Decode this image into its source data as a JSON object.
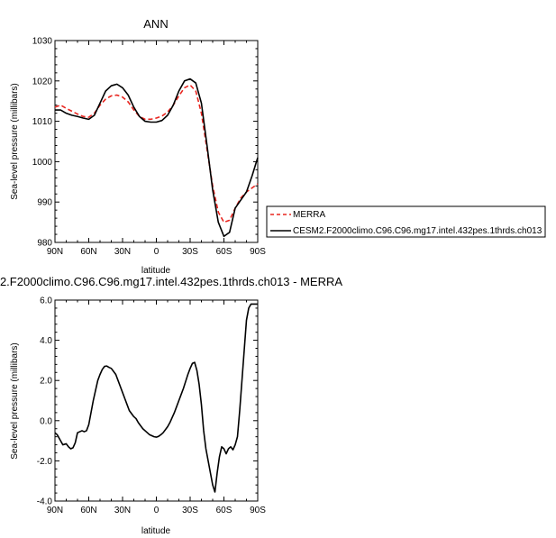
{
  "chart_data": [
    {
      "type": "line",
      "title": "ANN",
      "xlabel": "latitude",
      "ylabel": "Sea-level pressure (millibars)",
      "xlim": [
        -90,
        90
      ],
      "ylim": [
        980,
        1030
      ],
      "xticks": [
        -90,
        -60,
        -30,
        0,
        30,
        60,
        90
      ],
      "xtick_labels": [
        "90N",
        "60N",
        "30N",
        "0",
        "30S",
        "60S",
        "90S"
      ],
      "yticks": [
        980,
        990,
        1000,
        1010,
        1020,
        1030
      ],
      "ytick_labels": [
        "980",
        "990",
        "1000",
        "1010",
        "1020",
        "1030"
      ],
      "legend": "right",
      "grid": false,
      "series": [
        {
          "name": "MERRA",
          "color": "#e8251f",
          "dash": true,
          "x": [
            -90,
            -85,
            -80,
            -75,
            -70,
            -65,
            -60,
            -55,
            -50,
            -45,
            -40,
            -35,
            -30,
            -25,
            -20,
            -15,
            -10,
            -5,
            0,
            5,
            10,
            15,
            20,
            25,
            30,
            35,
            40,
            45,
            50,
            55,
            60,
            65,
            70,
            75,
            80,
            85,
            90
          ],
          "y": [
            1013.5,
            1014,
            1013.2,
            1012.5,
            1011.8,
            1011.2,
            1011,
            1012,
            1014,
            1015.5,
            1016.3,
            1016.5,
            1016,
            1014.8,
            1012.8,
            1011.2,
            1010.5,
            1010.5,
            1010.8,
            1011.3,
            1012.3,
            1014,
            1016.3,
            1018.3,
            1019,
            1017.5,
            1012,
            1003,
            994,
            987.5,
            985,
            985.5,
            988.5,
            991,
            992.5,
            993.5,
            994.5
          ]
        },
        {
          "name": "CESM2.F2000climo.C96.C96.mg17.intel.432pes.1thrds.ch013",
          "color": "#000000",
          "dash": false,
          "x": [
            -90,
            -85,
            -80,
            -75,
            -70,
            -65,
            -60,
            -55,
            -50,
            -45,
            -40,
            -35,
            -30,
            -25,
            -20,
            -15,
            -10,
            -5,
            0,
            5,
            10,
            15,
            20,
            25,
            30,
            35,
            40,
            45,
            50,
            55,
            60,
            65,
            70,
            75,
            80,
            85,
            90
          ],
          "y": [
            1012.8,
            1012.8,
            1012,
            1011.5,
            1011.2,
            1010.8,
            1010.5,
            1011.5,
            1014.5,
            1017.5,
            1018.8,
            1019.2,
            1018.3,
            1016.5,
            1013.5,
            1011.2,
            1010,
            1009.8,
            1009.8,
            1010.2,
            1011.5,
            1014,
            1017.5,
            1020,
            1020.5,
            1019.5,
            1014.5,
            1004,
            993,
            985,
            981.5,
            982.5,
            988.5,
            990.5,
            992.5,
            996.5,
            1001
          ]
        }
      ]
    },
    {
      "type": "line",
      "title": "2.F2000climo.C96.C96.mg17.intel.432pes.1thrds.ch013 - MERRA",
      "xlabel": "latitude",
      "ylabel": "Sea-level pressure (millibars)",
      "xlim": [
        -90,
        90
      ],
      "ylim": [
        -4,
        6
      ],
      "xticks": [
        -90,
        -60,
        -30,
        0,
        30,
        60,
        90
      ],
      "xtick_labels": [
        "90N",
        "60N",
        "30N",
        "0",
        "30S",
        "60S",
        "90S"
      ],
      "yticks": [
        -4,
        -2,
        0,
        2,
        4,
        6
      ],
      "ytick_labels": [
        "-4.0",
        "-2.0",
        "0.0",
        "2.0",
        "4.0",
        "6.0"
      ],
      "grid": false,
      "series": [
        {
          "color": "#000000",
          "x": [
            -90,
            -88,
            -85,
            -83,
            -80,
            -78,
            -76,
            -74,
            -72,
            -70,
            -68,
            -66,
            -64,
            -62,
            -60,
            -58,
            -56,
            -54,
            -52,
            -50,
            -48,
            -46,
            -44,
            -42,
            -40,
            -38,
            -36,
            -34,
            -32,
            -30,
            -28,
            -26,
            -24,
            -22,
            -20,
            -18,
            -16,
            -14,
            -12,
            -10,
            -8,
            -6,
            -4,
            -2,
            0,
            2,
            4,
            6,
            8,
            10,
            12,
            14,
            16,
            18,
            20,
            22,
            24,
            26,
            28,
            30,
            32,
            34,
            36,
            38,
            40,
            42,
            44,
            46,
            48,
            50,
            52,
            54,
            56,
            58,
            60,
            62,
            64,
            66,
            68,
            70,
            72,
            74,
            76,
            78,
            80,
            82,
            84,
            86,
            88,
            90
          ],
          "y": [
            -0.6,
            -0.7,
            -1.0,
            -1.2,
            -1.15,
            -1.3,
            -1.4,
            -1.35,
            -1.1,
            -0.6,
            -0.55,
            -0.5,
            -0.55,
            -0.5,
            -0.2,
            0.4,
            1.0,
            1.5,
            2.0,
            2.3,
            2.55,
            2.7,
            2.72,
            2.65,
            2.6,
            2.45,
            2.3,
            2.0,
            1.7,
            1.4,
            1.1,
            0.8,
            0.5,
            0.35,
            0.2,
            0.1,
            -0.1,
            -0.25,
            -0.4,
            -0.5,
            -0.6,
            -0.7,
            -0.75,
            -0.8,
            -0.82,
            -0.78,
            -0.7,
            -0.6,
            -0.45,
            -0.3,
            -0.1,
            0.15,
            0.4,
            0.7,
            1.0,
            1.3,
            1.6,
            1.95,
            2.3,
            2.6,
            2.85,
            2.9,
            2.5,
            1.8,
            0.8,
            -0.5,
            -1.4,
            -2.0,
            -2.6,
            -3.2,
            -3.55,
            -2.6,
            -1.8,
            -1.3,
            -1.4,
            -1.65,
            -1.4,
            -1.3,
            -1.45,
            -1.2,
            -0.8,
            0.5,
            2.0,
            3.5,
            5.0,
            5.6,
            5.8,
            5.8,
            5.8,
            5.8
          ]
        }
      ]
    }
  ]
}
